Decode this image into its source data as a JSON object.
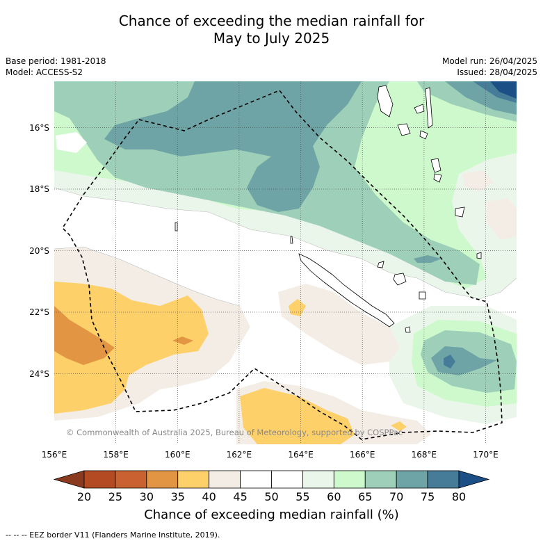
{
  "title": {
    "line1": "Chance of exceeding the median rainfall for",
    "line2": "May to July 2025"
  },
  "meta_left": {
    "base_period": "Base period: 1981-2018",
    "model": "Model: ACCESS-S2"
  },
  "meta_right": {
    "model_run": "Model run: 26/04/2025",
    "issued": "Issued: 28/04/2025"
  },
  "map": {
    "lat_labels": [
      "16°S",
      "18°S",
      "20°S",
      "22°S",
      "24°S"
    ],
    "lon_labels": [
      "156°E",
      "158°E",
      "160°E",
      "162°E",
      "164°E",
      "166°E",
      "168°E",
      "170°E"
    ],
    "copyright": "© Commonwealth of Australia 2025, Bureau of Meteorology, supported by COSPPac",
    "land_color": "#ffffff",
    "eez_line_style": "dashed"
  },
  "colorbar": {
    "ticks": [
      "20",
      "25",
      "30",
      "35",
      "40",
      "45",
      "50",
      "55",
      "60",
      "65",
      "70",
      "75",
      "80"
    ],
    "colors": [
      "#b34a22",
      "#c96230",
      "#e29644",
      "#fdd06a",
      "#f3ede6",
      "#ffffff",
      "#ffffff",
      "#ebf6eb",
      "#cdf9cc",
      "#9ecfb8",
      "#6ea4a5",
      "#467c98"
    ],
    "low_extend_color": "#8a3b1f",
    "high_extend_color": "#1b4f86",
    "label": "Chance of exceeding median rainfall (%)"
  },
  "footnote": "-- -- -- EEZ border V11 (Flanders Marine Institute, 2019)."
}
